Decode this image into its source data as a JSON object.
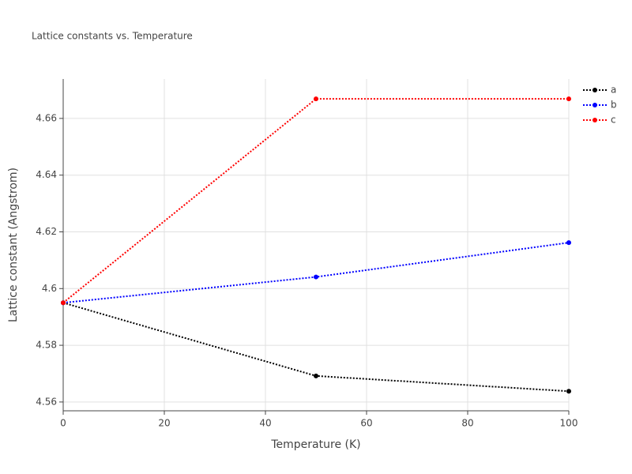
{
  "chart_data": {
    "type": "line",
    "title": "Lattice constants vs. Temperature",
    "x_label": "Temperature (K)",
    "y_label": "Lattice constant (Angstrom)",
    "x": [
      0,
      50,
      100
    ],
    "series": [
      {
        "name": "a",
        "color": "#000000",
        "values": [
          4.595,
          4.5692,
          4.5638
        ]
      },
      {
        "name": "b",
        "color": "#0000ff",
        "values": [
          4.595,
          4.6041,
          4.6162
        ]
      },
      {
        "name": "c",
        "color": "#ff0000",
        "values": [
          4.595,
          4.6669,
          4.6669
        ]
      }
    ],
    "xlim": [
      0,
      100
    ],
    "xticks": [
      0,
      20,
      40,
      60,
      80,
      100
    ],
    "ylim": [
      4.5569,
      4.6739
    ],
    "yticks": [
      4.56,
      4.58,
      4.6,
      4.62,
      4.64,
      4.66
    ],
    "grid": true,
    "legend": "top-right"
  }
}
